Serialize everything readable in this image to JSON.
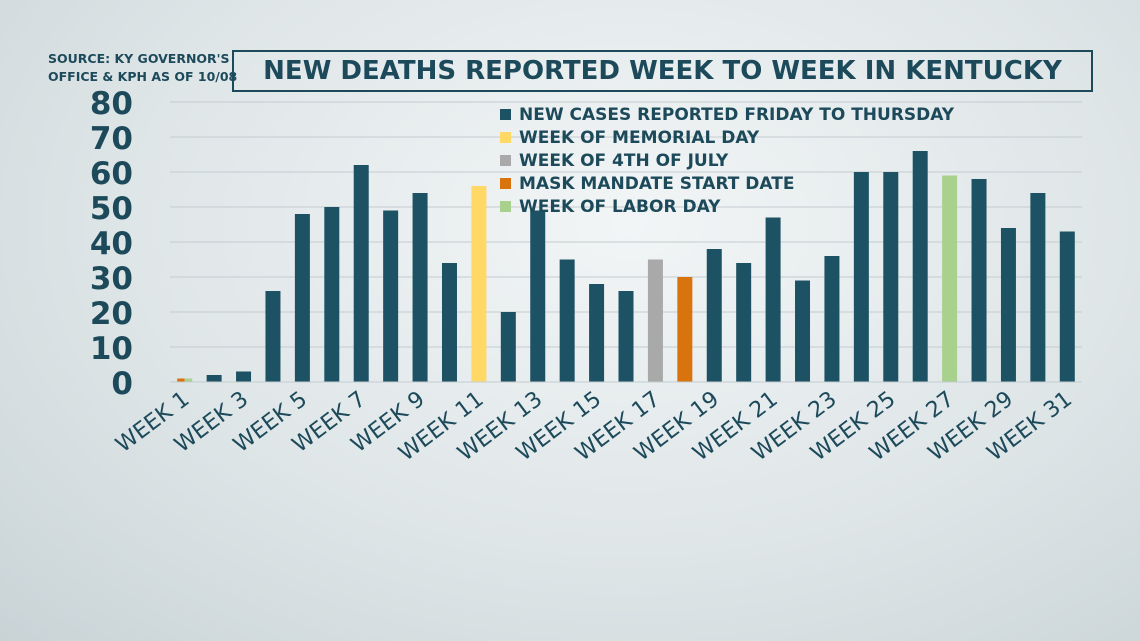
{
  "source": "SOURCE: KY GOVERNOR'S OFFICE & KPH AS OF 10/08",
  "colors": {
    "regular": "#1d5264",
    "memorial": "#ffd866",
    "july4": "#a9a9a9",
    "mask": "#d9730d",
    "labor": "#a9d18e",
    "text": "#1d4a5b",
    "grid": "#c4ccd0"
  },
  "legend": [
    {
      "label": "NEW CASES REPORTED FRIDAY TO THURSDAY",
      "color_key": "regular"
    },
    {
      "label": "WEEK OF MEMORIAL DAY",
      "color_key": "memorial"
    },
    {
      "label": "WEEK OF 4TH OF JULY",
      "color_key": "july4"
    },
    {
      "label": "MASK MANDATE START DATE",
      "color_key": "mask"
    },
    {
      "label": "WEEK OF LABOR DAY",
      "color_key": "labor"
    }
  ],
  "chart_data": {
    "type": "bar",
    "title": "NEW DEATHS REPORTED WEEK TO WEEK IN KENTUCKY",
    "categories": [
      "WEEK 1",
      "WEEK 2",
      "WEEK 3",
      "WEEK 4",
      "WEEK 5",
      "WEEK 6",
      "WEEK 7",
      "WEEK 8",
      "WEEK 9",
      "WEEK 10",
      "WEEK 11",
      "WEEK 12",
      "WEEK 13",
      "WEEK 14",
      "WEEK 15",
      "WEEK 16",
      "WEEK 17",
      "WEEK 18",
      "WEEK 19",
      "WEEK 20",
      "WEEK 21",
      "WEEK 22",
      "WEEK 23",
      "WEEK 24",
      "WEEK 25",
      "WEEK 26",
      "WEEK 27",
      "WEEK 28",
      "WEEK 29",
      "WEEK 30",
      "WEEK 31"
    ],
    "tick_labels": [
      "WEEK 1",
      "WEEK 3",
      "WEEK 5",
      "WEEK 7",
      "WEEK 9",
      "WEEK 11",
      "WEEK 13",
      "WEEK 15",
      "WEEK 17",
      "WEEK 19",
      "WEEK 21",
      "WEEK 23",
      "WEEK 25",
      "WEEK 27",
      "WEEK 29",
      "WEEK 31"
    ],
    "values": [
      1,
      2,
      3,
      26,
      48,
      50,
      62,
      49,
      54,
      34,
      56,
      20,
      49,
      35,
      28,
      26,
      35,
      30,
      38,
      34,
      47,
      29,
      36,
      60,
      60,
      66,
      59,
      58,
      44,
      54,
      43
    ],
    "bar_color_keys": [
      "mask",
      "regular",
      "regular",
      "regular",
      "regular",
      "regular",
      "regular",
      "regular",
      "regular",
      "regular",
      "memorial",
      "regular",
      "regular",
      "regular",
      "regular",
      "regular",
      "july4",
      "mask",
      "regular",
      "regular",
      "regular",
      "regular",
      "regular",
      "regular",
      "regular",
      "regular",
      "labor",
      "regular",
      "regular",
      "regular",
      "regular"
    ],
    "week1_overlay_color_key": "labor",
    "ylim": [
      0,
      80
    ],
    "yticks": [
      0,
      10,
      20,
      30,
      40,
      50,
      60,
      70,
      80
    ],
    "grid": true,
    "legend_position": "top-center"
  }
}
